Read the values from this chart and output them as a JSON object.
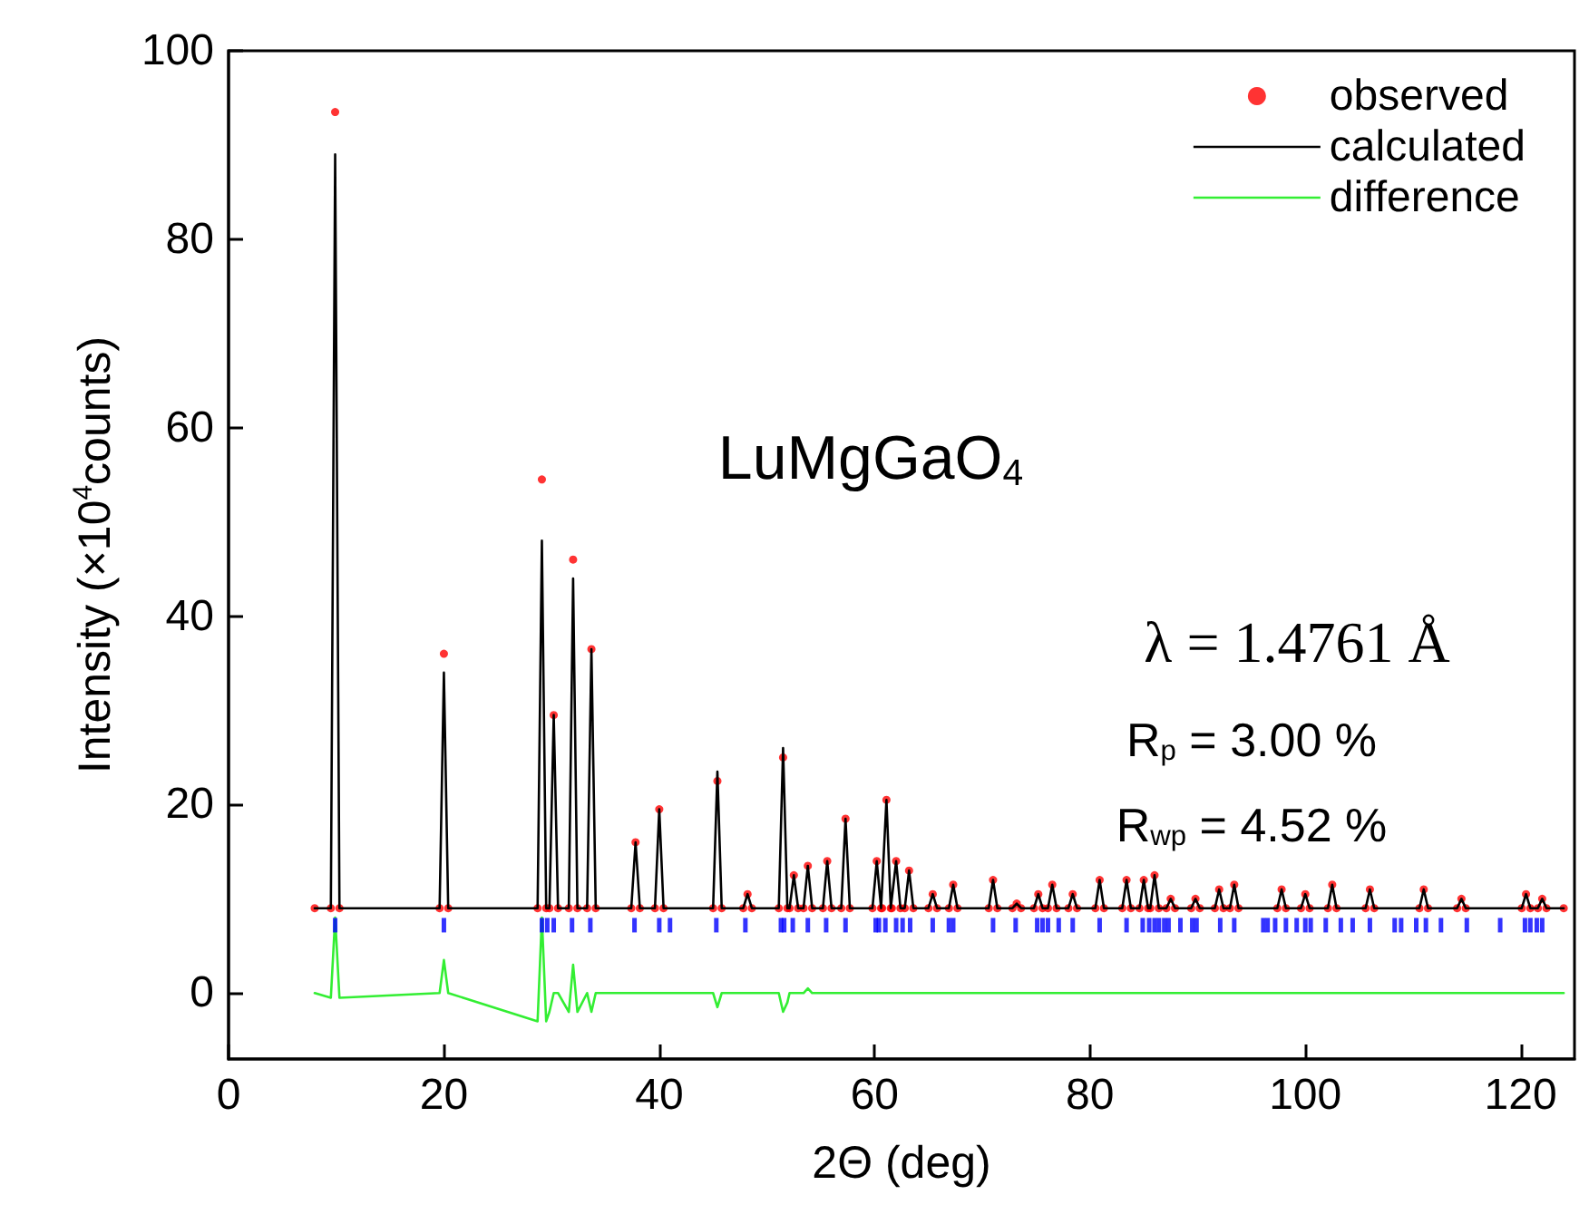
{
  "chart_data": {
    "type": "line",
    "xlabel": "2Θ (deg)",
    "ylabel": "Intensity (×10$^{4}$counts)",
    "xlim": [
      0,
      125
    ],
    "ylim": [
      -7,
      100
    ],
    "xticks": [
      0,
      20,
      40,
      60,
      80,
      100,
      120
    ],
    "yticks": [
      0,
      20,
      40,
      60,
      80,
      100
    ],
    "grid": false,
    "legend": "top right",
    "annotations": [
      "LuMgGaO$_{4}$",
      "λ = 1.4761 Å",
      "R$_{p}$ = 3.00 %",
      "R$_{wp}$ = 4.52 %"
    ],
    "x": [
      8,
      9.5,
      9.9,
      10.3,
      19.6,
      20,
      20.4,
      28.7,
      29.1,
      29.5,
      29.8,
      30.2,
      30.6,
      31.6,
      32,
      32.4,
      33.3,
      33.7,
      34.1,
      37.4,
      37.8,
      38.2,
      39.6,
      40,
      40.4,
      45,
      45.4,
      45.8,
      47.8,
      48.2,
      48.6,
      51.1,
      51.5,
      51.9,
      52.1,
      52.5,
      52.9,
      53.4,
      53.8,
      54.2,
      55.2,
      55.6,
      56,
      56.9,
      57.3,
      57.7,
      59.8,
      60.2,
      60.6,
      60.7,
      61.1,
      61.5,
      61.6,
      62,
      62.4,
      62.8,
      63.2,
      63.6,
      65,
      65.4,
      65.8,
      66.9,
      67.3,
      67.7,
      70.6,
      71,
      71.4,
      72.8,
      73.2,
      73.6,
      74.8,
      75.2,
      75.6,
      76.1,
      76.5,
      76.9,
      78,
      78.4,
      78.8,
      80.5,
      80.9,
      81.3,
      83,
      83.4,
      83.8,
      84.6,
      85,
      85.4,
      85.6,
      86,
      86.4,
      87.1,
      87.5,
      87.9,
      89.4,
      89.8,
      90.2,
      91.6,
      92,
      92.4,
      93,
      93.4,
      93.8,
      97.4,
      97.8,
      98.2,
      99.6,
      100,
      100.4,
      102.1,
      102.5,
      102.9,
      105.6,
      106,
      106.4,
      110.6,
      111,
      111.4,
      114.1,
      114.5,
      114.9,
      120.1,
      120.5,
      120.9,
      121.6,
      122,
      122.4,
      124
    ],
    "series": [
      {
        "name": "observed",
        "type": "scatter",
        "marker": "circle",
        "color": "#ff0000",
        "values": [
          9,
          9,
          93.5,
          9,
          9,
          36,
          9,
          9,
          54.5,
          9,
          9,
          29.5,
          9,
          9,
          46,
          9,
          9,
          36.5,
          9,
          9,
          16,
          9,
          9,
          19.5,
          9,
          9,
          22.5,
          9,
          9,
          10.5,
          9,
          9,
          25,
          9,
          9,
          12.5,
          9,
          9,
          13.5,
          9,
          9,
          14,
          9,
          9,
          18.5,
          9,
          9,
          14,
          9,
          9,
          20.5,
          9,
          9,
          14,
          9,
          9,
          13,
          9,
          9,
          10.5,
          9,
          9,
          11.5,
          9,
          9,
          12,
          9,
          9,
          9.5,
          9,
          9,
          10.5,
          9,
          9,
          11.5,
          9,
          9,
          10.5,
          9,
          9,
          12,
          9,
          9,
          12,
          9,
          9,
          12,
          9,
          9,
          12.5,
          9,
          9,
          10,
          9,
          9,
          10,
          9,
          9,
          11,
          9,
          9,
          11.5,
          9,
          9,
          11,
          9,
          9,
          10.5,
          9,
          9,
          11.5,
          9,
          9,
          11,
          9,
          9,
          11,
          9,
          9,
          10,
          9,
          9,
          10.5,
          9,
          9,
          10,
          9,
          9
        ]
      },
      {
        "name": "calculated",
        "marker": "none",
        "line_style": "solid",
        "color": "#000000",
        "values": [
          9,
          9,
          89,
          9,
          9,
          34,
          9,
          9,
          48,
          9,
          9,
          29.5,
          9,
          9,
          44,
          9,
          9,
          36.5,
          9,
          9,
          16,
          9,
          9,
          19.5,
          9,
          9,
          23.5,
          9,
          9,
          10.5,
          9,
          9,
          26,
          9,
          9,
          12.5,
          9,
          9,
          13.5,
          9,
          9,
          14,
          9,
          9,
          18.5,
          9,
          9,
          14,
          9,
          9,
          20.5,
          9,
          9,
          14,
          9,
          9,
          13,
          9,
          9,
          10.5,
          9,
          9,
          11.5,
          9,
          9,
          12,
          9,
          9,
          9.5,
          9,
          9,
          10.5,
          9,
          9,
          11.5,
          9,
          9,
          10.5,
          9,
          9,
          12,
          9,
          9,
          12,
          9,
          9,
          12,
          9,
          9,
          12.5,
          9,
          9,
          10,
          9,
          9,
          10,
          9,
          9,
          11,
          9,
          9,
          11.5,
          9,
          9,
          11,
          9,
          9,
          10.5,
          9,
          9,
          11.5,
          9,
          9,
          11,
          9,
          9,
          11,
          9,
          9,
          10,
          9,
          9,
          10.5,
          9,
          9,
          10,
          9,
          9
        ]
      },
      {
        "name": "difference",
        "marker": "none",
        "line_style": "solid",
        "color": "#33ee33",
        "values": [
          0,
          -0.5,
          8,
          -0.5,
          0,
          3.5,
          0,
          -3,
          8,
          -3,
          -2,
          0,
          0,
          -2,
          3,
          -2,
          0,
          -2,
          0,
          0,
          0,
          0,
          0,
          0,
          0,
          0,
          -1.5,
          0,
          0,
          0,
          0,
          0,
          -2,
          -1,
          0,
          0,
          0,
          0,
          0.5,
          0,
          0,
          0,
          0,
          0,
          0,
          0,
          0,
          0,
          0,
          0,
          0,
          0,
          0,
          0,
          0,
          0,
          0,
          0,
          0,
          0,
          0,
          0,
          0,
          0,
          0,
          0,
          0,
          0,
          0,
          0,
          0,
          0,
          0,
          0,
          0,
          0,
          0,
          0,
          0,
          0,
          0,
          0,
          0,
          0,
          0,
          0,
          0,
          0,
          0,
          0,
          0,
          0,
          0,
          0,
          0,
          0,
          0,
          0,
          0,
          0,
          0,
          0,
          0,
          0,
          0,
          0,
          0,
          0,
          0,
          0,
          0,
          0,
          0,
          0,
          0,
          0,
          0,
          0,
          0,
          0,
          0,
          0,
          0,
          0,
          0,
          0,
          0,
          0
        ]
      },
      {
        "type": "scatter",
        "marker": "square",
        "color": "#0000ff",
        "x": [
          9.9,
          20.0,
          29.1,
          29.6,
          30.2,
          31.9,
          33.6,
          37.7,
          40.0,
          41.0,
          45.3,
          48.0,
          51.3,
          51.6,
          52.4,
          53.8,
          55.5,
          57.3,
          60.1,
          60.4,
          61.0,
          62.0,
          62.6,
          63.3,
          65.4,
          66.9,
          67.3,
          71.0,
          73.1,
          75.1,
          75.6,
          76.1,
          77.1,
          78.4,
          80.9,
          83.4,
          84.9,
          85.5,
          86.0,
          86.4,
          86.9,
          87.3,
          88.4,
          89.5,
          89.9,
          92.1,
          93.4,
          96.1,
          96.5,
          97.2,
          98.2,
          99.2,
          100.0,
          100.5,
          101.9,
          103.3,
          104.4,
          106.0,
          108.3,
          108.9,
          110.3,
          111.2,
          112.6,
          115.0,
          118.1,
          120.4,
          120.9,
          121.5,
          122.0
        ],
        "values": [
          7.2,
          7.2,
          7.2,
          7.2,
          7.2,
          7.2,
          7.2,
          7.2,
          7.2,
          7.2,
          7.2,
          7.2,
          7.2,
          7.2,
          7.2,
          7.2,
          7.2,
          7.2,
          7.2,
          7.2,
          7.2,
          7.2,
          7.2,
          7.2,
          7.2,
          7.2,
          7.2,
          7.2,
          7.2,
          7.2,
          7.2,
          7.2,
          7.2,
          7.2,
          7.2,
          7.2,
          7.2,
          7.2,
          7.2,
          7.2,
          7.2,
          7.2,
          7.2,
          7.2,
          7.2,
          7.2,
          7.2,
          7.2,
          7.2,
          7.2,
          7.2,
          7.2,
          7.2,
          7.2,
          7.2,
          7.2,
          7.2,
          7.2,
          7.2,
          7.2,
          7.2,
          7.2,
          7.2,
          7.2,
          7.2,
          7.2,
          7.2,
          7.2,
          7.2
        ]
      }
    ]
  }
}
